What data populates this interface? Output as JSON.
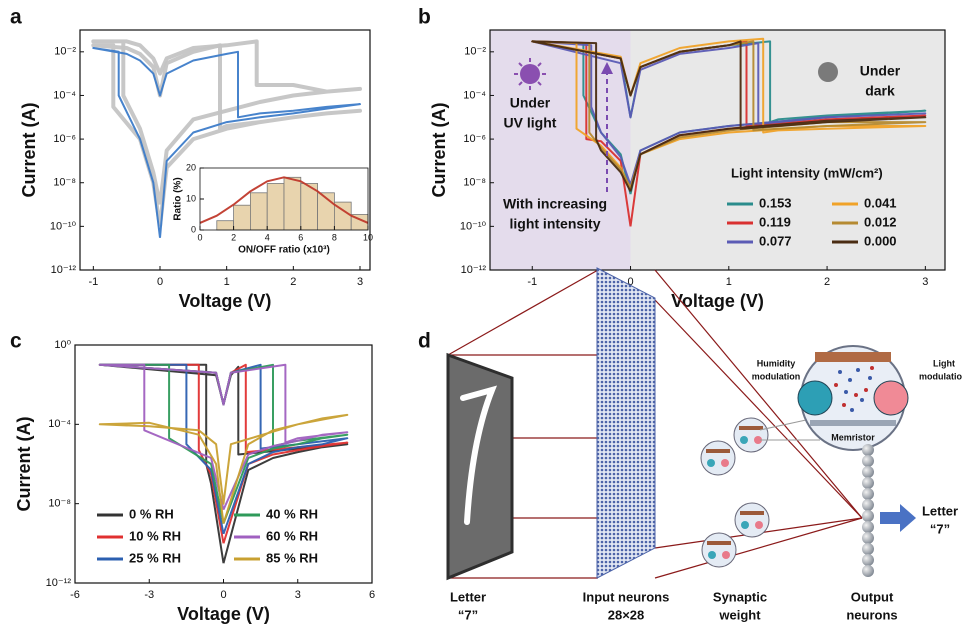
{
  "chart_data": [
    {
      "type": "line",
      "panel_label": "a",
      "xlabel": "Voltage (V)",
      "ylabel": "Current (A)",
      "log_y": true,
      "xlim": [
        -1.2,
        3.15
      ],
      "ylim": [
        1e-12,
        0.1
      ],
      "xticks": [
        -1,
        0,
        1,
        2,
        3
      ],
      "yticks": [
        {
          "value": 0.01,
          "label": "10⁻²"
        },
        {
          "value": 0.0001,
          "label": "10⁻⁴"
        },
        {
          "value": 1e-06,
          "label": "10⁻⁶"
        },
        {
          "value": 1e-08,
          "label": "10⁻⁸"
        },
        {
          "value": 1e-10,
          "label": "10⁻¹⁰"
        },
        {
          "value": 1e-12,
          "label": "10⁻¹²"
        }
      ],
      "series": [
        {
          "color": "#c4c4c4",
          "x": [
            0,
            0.1,
            0.5,
            1,
            1.5,
            2,
            2.5,
            3,
            2.5,
            2,
            1.6,
            1.45,
            1.45,
            1,
            0.5,
            0.1,
            0,
            -0.1,
            -0.3,
            -0.5,
            -1,
            -0.55,
            -0.55,
            -0.3,
            -0.1,
            0
          ],
          "values": [
            1e-09,
            3e-07,
            8e-06,
            2e-05,
            5e-05,
            0.0001,
            0.00015,
            0.0002,
            0.00015,
            0.0003,
            0.0003,
            0.0003,
            0.03,
            0.02,
            0.015,
            0.005,
            0.001,
            0.005,
            0.02,
            0.03,
            0.03,
            0.03,
            0.0001,
            3e-06,
            3e-08,
            1e-09
          ]
        },
        {
          "color": "#c4c4c4",
          "x": [
            0,
            0.1,
            0.5,
            1,
            1.5,
            2,
            2.5,
            3,
            2.5,
            2,
            1.5,
            1,
            0.9,
            0.9,
            0.5,
            0.1,
            0,
            -0.1,
            -0.3,
            -0.5,
            -1,
            -0.7,
            -0.7,
            -0.3,
            -0.1,
            0
          ],
          "values": [
            1e-10,
            5e-08,
            1e-06,
            3e-06,
            6e-06,
            1e-05,
            1.5e-05,
            2e-05,
            1.5e-05,
            1e-05,
            6e-06,
            4e-06,
            3e-06,
            0.02,
            0.01,
            0.003,
            0.0001,
            0.002,
            0.008,
            0.015,
            0.02,
            0.02,
            3e-05,
            1e-06,
            1e-08,
            1e-10
          ]
        },
        {
          "color": "#3d7cc9",
          "x": [
            0,
            0.1,
            0.5,
            1,
            1.5,
            2,
            2.5,
            3,
            2.5,
            2,
            1.5,
            1.17,
            1.17,
            1,
            0.5,
            0.1,
            0,
            -0.1,
            -0.3,
            -0.5,
            -1,
            -0.62,
            -0.62,
            -0.3,
            -0.1,
            0
          ],
          "values": [
            3e-11,
            1e-07,
            2e-06,
            6e-06,
            1e-05,
            1.5e-05,
            2.5e-05,
            4e-05,
            3e-05,
            2e-05,
            1.5e-05,
            1e-05,
            0.01,
            0.008,
            0.004,
            0.001,
            0.0001,
            0.001,
            0.004,
            0.008,
            0.015,
            0.01,
            0.0001,
            1e-06,
            1e-08,
            3e-11
          ]
        }
      ]
    },
    {
      "type": "histogram",
      "xlabel": "ON/OFF ratio (x10³)",
      "ylabel": "Ratio (%)",
      "xlim": [
        0,
        10
      ],
      "ylim": [
        0,
        20
      ],
      "xticks": [
        0,
        2,
        4,
        6,
        8,
        10
      ],
      "yticks": [
        0,
        10,
        20
      ],
      "bins": [
        1,
        2,
        3,
        4,
        5,
        6,
        7,
        8,
        9,
        10
      ],
      "values": [
        3,
        8,
        12,
        15,
        17,
        15,
        12,
        9,
        5
      ],
      "color": "#e8d4ae",
      "series": [
        {
          "color": "#c0392b",
          "x": [
            0,
            1,
            2,
            3,
            4,
            5,
            6,
            7,
            8,
            9,
            10
          ],
          "values": [
            2.3,
            4.6,
            8.2,
            12.5,
            15.7,
            17,
            15.7,
            12.5,
            8.2,
            4.6,
            2.3
          ]
        }
      ]
    },
    {
      "type": "line",
      "panel_label": "b",
      "xlabel": "Voltage (V)",
      "ylabel": "Current (A)",
      "log_y": true,
      "xlim": [
        -1.43,
        3.2
      ],
      "ylim": [
        1e-12,
        0.1
      ],
      "xticks": [
        -1,
        0,
        1,
        2,
        3
      ],
      "yticks": [
        {
          "value": 0.01,
          "label": "10⁻²"
        },
        {
          "value": 0.0001,
          "label": "10⁻⁴"
        },
        {
          "value": 1e-06,
          "label": "10⁻⁶"
        },
        {
          "value": 1e-08,
          "label": "10⁻⁸"
        },
        {
          "value": 1e-10,
          "label": "10⁻¹⁰"
        },
        {
          "value": 1e-12,
          "label": "10⁻¹²"
        }
      ],
      "regions": [
        {
          "xlim": [
            -1.43,
            0
          ],
          "color": "#e4dcec"
        },
        {
          "xlim": [
            0,
            3.2
          ],
          "color": "#e8e8e8"
        }
      ],
      "annotations": [
        [
          "Under",
          "UV light"
        ],
        [
          "Under",
          "dark"
        ],
        [
          "With increasing",
          "light intensity"
        ]
      ],
      "legend_title": "Light intensity (mW/cm²)",
      "legend_position": "lower right",
      "series": [
        {
          "name": "0.153",
          "color": "#2a8c8c",
          "x": [
            0,
            0.1,
            0.5,
            1,
            2,
            3,
            2,
            1.5,
            1.42,
            1.42,
            1,
            0.5,
            0.1,
            0,
            -0.1,
            -1,
            -0.48,
            -0.48,
            -0.3,
            -0.1,
            0
          ],
          "values": [
            3e-09,
            3e-07,
            2e-06,
            4e-06,
            1e-05,
            2e-05,
            1.2e-05,
            8e-06,
            6e-06,
            0.03,
            0.02,
            0.01,
            0.002,
            1e-05,
            0.005,
            0.03,
            0.025,
            0.0001,
            2e-06,
            2e-07,
            3e-09
          ]
        },
        {
          "name": "0.119",
          "color": "#d93030",
          "x": [
            0,
            0.1,
            0.5,
            1,
            2,
            3,
            2,
            1.5,
            1.18,
            1.18,
            1,
            0.5,
            0.1,
            0,
            -0.1,
            -1,
            -0.45,
            -0.45,
            -0.3,
            -0.1,
            0
          ],
          "values": [
            1e-10,
            2e-07,
            1.5e-06,
            3e-06,
            8e-06,
            1.2e-05,
            8e-06,
            5e-06,
            4e-06,
            0.03,
            0.02,
            0.01,
            0.002,
            0.0001,
            0.005,
            0.03,
            0.025,
            1e-06,
            8e-07,
            1e-07,
            1e-10
          ]
        },
        {
          "name": "0.077",
          "color": "#5b5bb5",
          "x": [
            0,
            0.1,
            0.5,
            1,
            2,
            3,
            2,
            1.5,
            1.3,
            1.3,
            1,
            0.5,
            0.1,
            0,
            -0.1,
            -1,
            -0.4,
            -0.4,
            -0.3,
            -0.1,
            0
          ],
          "values": [
            8e-09,
            3e-07,
            2e-06,
            4e-06,
            1e-05,
            1.5e-05,
            1e-05,
            6e-06,
            5e-06,
            0.025,
            0.015,
            0.008,
            0.0015,
            1e-05,
            0.003,
            0.03,
            0.02,
            3e-05,
            2e-06,
            1.5e-07,
            8e-09
          ]
        },
        {
          "name": "0.041",
          "color": "#f0a228",
          "x": [
            0,
            0.1,
            0.5,
            1,
            2,
            3,
            2,
            1.5,
            1.35,
            1.35,
            1,
            0.5,
            0.1,
            0,
            -0.1,
            -1,
            -0.55,
            -0.55,
            -0.3,
            -0.1,
            0
          ],
          "values": [
            5e-09,
            2e-07,
            1e-06,
            2e-06,
            4e-06,
            4e-06,
            3e-06,
            2.5e-06,
            2e-06,
            0.04,
            0.03,
            0.015,
            0.003,
            0.0001,
            0.006,
            0.03,
            0.025,
            3e-06,
            5e-07,
            5e-08,
            5e-09
          ]
        },
        {
          "name": "0.012",
          "color": "#b58a32",
          "x": [
            0,
            0.1,
            0.5,
            1,
            2,
            3,
            2,
            1.5,
            1.25,
            1.25,
            1,
            0.5,
            0.1,
            0,
            -0.1,
            -1,
            -0.42,
            -0.42,
            -0.3,
            -0.1,
            0
          ],
          "values": [
            6e-09,
            2e-07,
            1.2e-06,
            2.5e-06,
            6e-06,
            6e-06,
            4e-06,
            3e-06,
            2.5e-06,
            0.03,
            0.02,
            0.01,
            0.002,
            0.0001,
            0.005,
            0.03,
            0.025,
            2e-06,
            4e-07,
            4e-08,
            6e-09
          ]
        },
        {
          "name": "0.000",
          "color": "#4a2c12",
          "x": [
            0,
            0.1,
            0.5,
            1,
            2,
            3,
            2,
            1.5,
            1.12,
            1.12,
            1,
            0.5,
            0.1,
            0,
            -0.1,
            -1,
            -0.35,
            -0.35,
            -0.3,
            -0.1,
            0
          ],
          "values": [
            4e-09,
            2e-07,
            1.5e-06,
            3e-06,
            7e-06,
            1e-05,
            6e-06,
            4e-06,
            3e-06,
            0.03,
            0.02,
            0.01,
            0.002,
            0.0001,
            0.005,
            0.03,
            0.025,
            1e-06,
            3e-07,
            3e-08,
            4e-09
          ]
        }
      ]
    },
    {
      "type": "line",
      "panel_label": "c",
      "xlabel": "Voltage (V)",
      "ylabel": "Current (A)",
      "log_y": true,
      "xlim": [
        -6,
        6
      ],
      "ylim": [
        1e-12,
        1
      ],
      "xticks": [
        -6,
        -3,
        0,
        3,
        6
      ],
      "yticks": [
        {
          "value": 1,
          "label": "10⁰"
        },
        {
          "value": 0.0001,
          "label": "10⁻⁴"
        },
        {
          "value": 1e-08,
          "label": "10⁻⁸"
        },
        {
          "value": 1e-12,
          "label": "10⁻¹²"
        }
      ],
      "legend_position": "lower left",
      "series": [
        {
          "name": "0 % RH",
          "color": "#333333",
          "x": [
            0,
            1,
            2,
            3,
            4,
            5,
            3,
            0.6,
            0.6,
            0.3,
            0,
            -0.3,
            -5,
            -0.7,
            -0.7,
            -0.5,
            0
          ],
          "values": [
            1e-11,
            5e-07,
            2e-06,
            4e-06,
            7e-06,
            1e-05,
            6e-06,
            3e-06,
            0.08,
            0.03,
            0.001,
            0.03,
            0.1,
            0.1,
            1e-06,
            1e-07,
            1e-11
          ]
        },
        {
          "name": "10 % RH",
          "color": "#e03030",
          "x": [
            0,
            1,
            2,
            3,
            4,
            5,
            3,
            0.9,
            0.9,
            0.3,
            0,
            -0.3,
            -5,
            -1,
            -1,
            -0.5,
            0
          ],
          "values": [
            1e-10,
            1e-06,
            3e-06,
            5e-06,
            8e-06,
            1.2e-05,
            7e-06,
            4e-06,
            0.1,
            0.04,
            0.001,
            0.04,
            0.1,
            0.1,
            5e-06,
            3e-07,
            1e-10
          ]
        },
        {
          "name": "25 % RH",
          "color": "#2b5fb0",
          "x": [
            0,
            1,
            2,
            3,
            4,
            5,
            3,
            1.5,
            1.5,
            0.3,
            0,
            -0.3,
            -5,
            -1.5,
            -1.5,
            -0.5,
            0
          ],
          "values": [
            3e-10,
            1e-06,
            4e-06,
            7e-06,
            1e-05,
            2e-05,
            1e-05,
            6e-06,
            0.1,
            0.04,
            0.001,
            0.04,
            0.1,
            0.1,
            1e-05,
            5e-07,
            3e-10
          ]
        },
        {
          "name": "40 % RH",
          "color": "#2e9a5a",
          "x": [
            0,
            1,
            2,
            3,
            4,
            5,
            3,
            2,
            2,
            0.3,
            0,
            -0.3,
            -5,
            -2.2,
            -2.2,
            -0.5,
            0
          ],
          "values": [
            1e-09,
            2e-06,
            6e-06,
            1e-05,
            2e-05,
            3e-05,
            1.5e-05,
            8e-06,
            0.1,
            0.04,
            0.001,
            0.04,
            0.1,
            0.1,
            2e-05,
            1e-06,
            1e-09
          ]
        },
        {
          "name": "60 % RH",
          "color": "#a060c0",
          "x": [
            0,
            1,
            2,
            3,
            4,
            5,
            3,
            2.5,
            2.5,
            0.3,
            0,
            -0.3,
            -5,
            -3.2,
            -3.2,
            -0.5,
            0
          ],
          "values": [
            5e-09,
            3e-06,
            8e-06,
            1.5e-05,
            3e-05,
            4e-05,
            2e-05,
            1.2e-05,
            0.1,
            0.04,
            0.001,
            0.04,
            0.1,
            0.1,
            5e-05,
            2e-06,
            5e-09
          ]
        },
        {
          "name": "85 % RH",
          "color": "#c8a030",
          "x": [
            0,
            1,
            2,
            3,
            4,
            5,
            3,
            0.3,
            0,
            -0.3,
            -1,
            -3,
            -5,
            -3,
            -1,
            -0.3,
            0
          ],
          "values": [
            1e-09,
            1e-05,
            5e-05,
            0.0001,
            0.0002,
            0.0003,
            0.0001,
            1e-05,
            1e-08,
            1e-05,
            5e-05,
            8e-05,
            0.0001,
            0.00012,
            3e-05,
            1e-06,
            1e-09
          ]
        }
      ]
    }
  ],
  "diagram": {
    "panel_label": "d",
    "nodes": [
      {
        "label": "Letter",
        "sublabel": "“7”"
      },
      {
        "label": "Input neurons",
        "sublabel": "28×28"
      },
      {
        "label": "Synaptic",
        "sublabel": "weight"
      },
      {
        "label": "Output",
        "sublabel": "neurons"
      }
    ],
    "output": {
      "label": "Letter",
      "sublabel": "“7”"
    },
    "inset": {
      "left": [
        "Humidity",
        "modulation"
      ],
      "right": [
        "Light",
        "modulatio"
      ],
      "center": "Memristor"
    }
  }
}
